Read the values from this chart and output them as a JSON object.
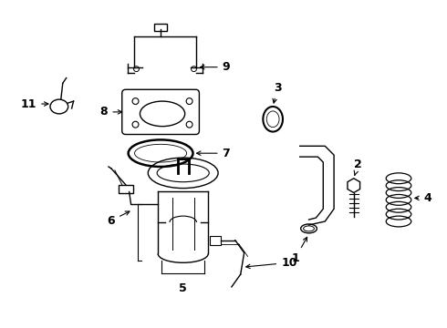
{
  "bg_color": "#ffffff",
  "line_color": "#000000",
  "figsize": [
    4.9,
    3.6
  ],
  "dpi": 100
}
